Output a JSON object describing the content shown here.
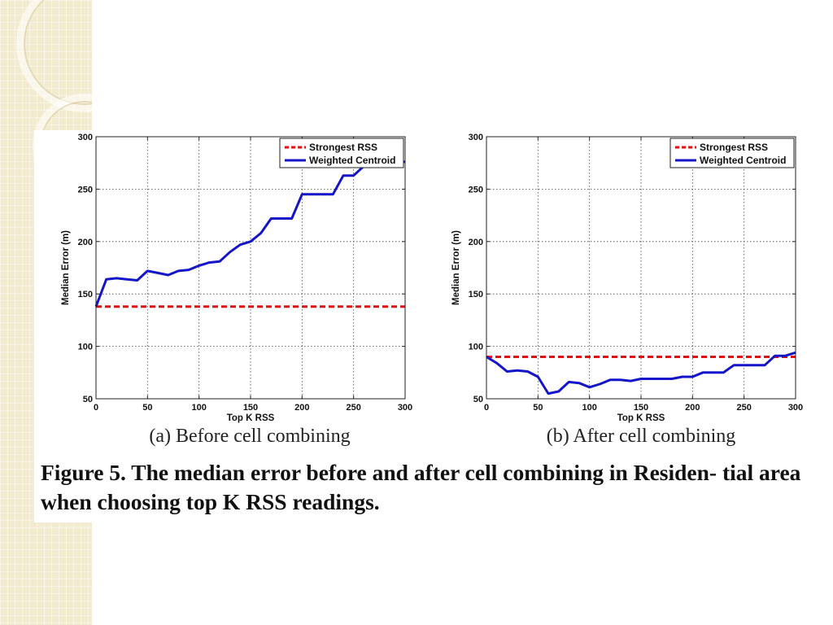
{
  "figure_caption": "Figure 5. The median error before and after cell combining in Residen- tial area when choosing top K RSS readings.",
  "colors": {
    "strongest": "#dd1111",
    "weighted": "#1414c8",
    "side_bg": "#f3ebcf"
  },
  "chart_data": [
    {
      "type": "line",
      "subcaption": "(a) Before cell combining",
      "xlabel": "Top K RSS",
      "ylabel": "Median Error (m)",
      "xlim": [
        0,
        300
      ],
      "ylim": [
        50,
        300
      ],
      "xticks": [
        0,
        50,
        100,
        150,
        200,
        250,
        300
      ],
      "yticks": [
        50,
        100,
        150,
        200,
        250,
        300
      ],
      "grid": true,
      "legend_position": "top-right",
      "series": [
        {
          "name": "Strongest RSS",
          "style": "dashed",
          "x": [
            0,
            300
          ],
          "y": [
            138,
            138
          ]
        },
        {
          "name": "Weighted Centroid",
          "style": "solid",
          "x": [
            0,
            10,
            20,
            30,
            40,
            50,
            60,
            70,
            80,
            90,
            100,
            110,
            120,
            130,
            140,
            150,
            160,
            170,
            180,
            190,
            200,
            210,
            220,
            230,
            240,
            250,
            260,
            270,
            280,
            290,
            300
          ],
          "y": [
            138,
            164,
            165,
            164,
            163,
            172,
            170,
            168,
            172,
            173,
            177,
            180,
            181,
            190,
            197,
            200,
            208,
            222,
            222,
            222,
            245,
            245,
            245,
            245,
            263,
            263,
            272,
            276,
            276,
            276,
            276
          ]
        }
      ]
    },
    {
      "type": "line",
      "subcaption": "(b) After cell combining",
      "xlabel": "Top K RSS",
      "ylabel": "Median Error (m)",
      "xlim": [
        0,
        300
      ],
      "ylim": [
        50,
        300
      ],
      "xticks": [
        0,
        50,
        100,
        150,
        200,
        250,
        300
      ],
      "yticks": [
        50,
        100,
        150,
        200,
        250,
        300
      ],
      "grid": true,
      "legend_position": "top-right",
      "series": [
        {
          "name": "Strongest RSS",
          "style": "dashed",
          "x": [
            0,
            300
          ],
          "y": [
            90,
            90
          ]
        },
        {
          "name": "Weighted Centroid",
          "style": "solid",
          "x": [
            0,
            10,
            20,
            30,
            40,
            50,
            60,
            70,
            80,
            90,
            100,
            110,
            120,
            130,
            140,
            150,
            160,
            170,
            180,
            190,
            200,
            210,
            220,
            230,
            240,
            250,
            260,
            270,
            280,
            290,
            300
          ],
          "y": [
            90,
            84,
            76,
            77,
            76,
            71,
            55,
            57,
            66,
            65,
            61,
            64,
            68,
            68,
            67,
            69,
            69,
            69,
            69,
            71,
            71,
            75,
            75,
            75,
            82,
            82,
            82,
            82,
            91,
            91,
            94
          ]
        }
      ]
    }
  ]
}
